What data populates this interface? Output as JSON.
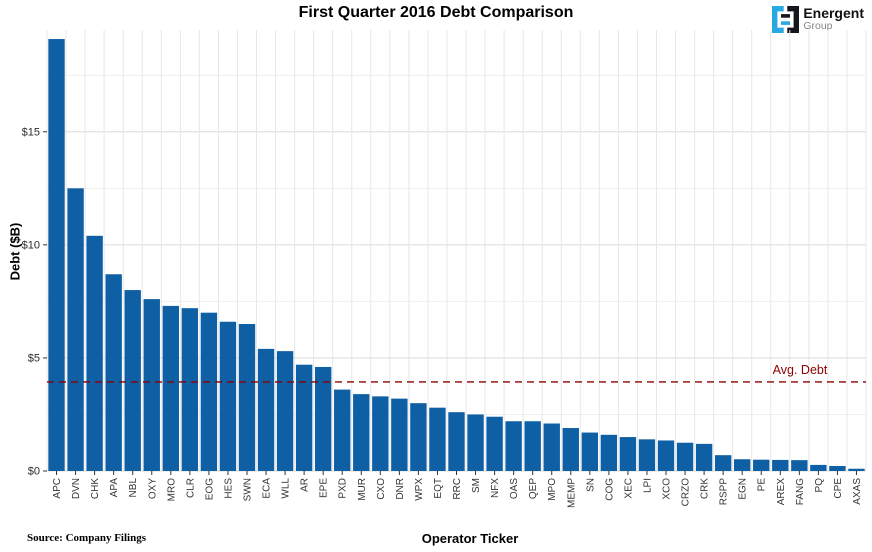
{
  "logo": {
    "name": "Energent",
    "subtitle": "Group",
    "blue": "#29a9e2",
    "dark": "#15151d"
  },
  "source_note": "Source: Company Filings",
  "chart_data": {
    "type": "bar",
    "title": "First Quarter 2016 Debt Comparison",
    "xlabel": "Operator Ticker",
    "ylabel": "Debt ($B)",
    "bar_color": "#0f5fa4",
    "grid": true,
    "legend": "none",
    "ylim": [
      0,
      19.5
    ],
    "yticks": [
      0,
      5,
      10,
      15
    ],
    "ytick_labels": [
      "$0",
      "$5",
      "$10",
      "$15"
    ],
    "minor_yticks": [
      2.5,
      7.5,
      12.5,
      17.5
    ],
    "categories": [
      "APC",
      "DVN",
      "CHK",
      "APA",
      "NBL",
      "OXY",
      "MRO",
      "CLR",
      "EOG",
      "HES",
      "SWN",
      "ECA",
      "WLL",
      "AR",
      "EPE",
      "PXD",
      "MUR",
      "CXO",
      "DNR",
      "WPX",
      "EQT",
      "RRC",
      "SM",
      "NFX",
      "OAS",
      "QEP",
      "MPO",
      "MEMP",
      "SN",
      "COG",
      "XEC",
      "LPI",
      "XCO",
      "CRZO",
      "CRK",
      "RSPP",
      "EGN",
      "PE",
      "AREX",
      "FANG",
      "PQ",
      "CPE",
      "AXAS"
    ],
    "values": [
      19.1,
      12.5,
      10.4,
      8.7,
      8.0,
      7.6,
      7.3,
      7.2,
      7.0,
      6.6,
      6.5,
      5.4,
      5.3,
      4.7,
      4.6,
      3.6,
      3.4,
      3.3,
      3.2,
      3.0,
      2.8,
      2.6,
      2.5,
      2.4,
      2.2,
      2.2,
      2.1,
      1.9,
      1.7,
      1.6,
      1.5,
      1.4,
      1.35,
      1.25,
      1.2,
      0.7,
      0.52,
      0.5,
      0.49,
      0.48,
      0.27,
      0.22,
      0.1
    ],
    "avg_line": {
      "label": "Avg. Debt",
      "value": 3.94,
      "color": "#8b0000",
      "style": "dashed"
    }
  }
}
